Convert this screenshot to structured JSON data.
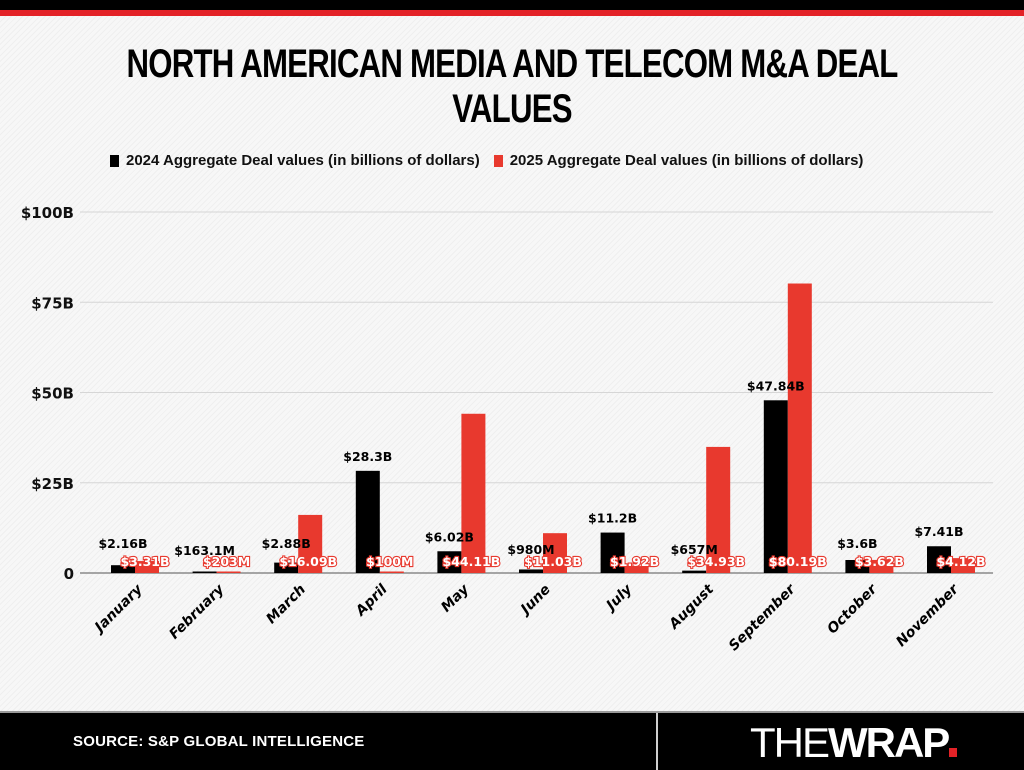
{
  "header": {
    "title": "NORTH AMERICAN MEDIA AND TELECOM M&A DEAL VALUES"
  },
  "footer": {
    "source": "SOURCE: S&P GLOBAL INTELLIGENCE",
    "logo_the": "THE",
    "logo_wrap": "WRAP"
  },
  "colors": {
    "series_2024": "#000000",
    "series_2025": "#e8392e",
    "accent_red": "#e32227"
  },
  "chart_data": {
    "type": "bar",
    "title": "NORTH AMERICAN MEDIA AND TELECOM M&A DEAL VALUES",
    "xlabel": "",
    "ylabel": "",
    "ylim": [
      0,
      100
    ],
    "y_ticks": [
      {
        "value": 0,
        "label": "0"
      },
      {
        "value": 25,
        "label": "$25B"
      },
      {
        "value": 50,
        "label": "$50B"
      },
      {
        "value": 75,
        "label": "$75B"
      },
      {
        "value": 100,
        "label": "$100B"
      }
    ],
    "grid": true,
    "legend_position": "top",
    "categories": [
      "January",
      "February",
      "March",
      "April",
      "May",
      "June",
      "July",
      "August",
      "September",
      "October",
      "November"
    ],
    "series": [
      {
        "name": "2024 Aggregate Deal values (in billions of dollars)",
        "color": "#000000",
        "values": [
          2.16,
          0.1631,
          2.88,
          28.3,
          6.02,
          0.98,
          11.2,
          0.657,
          47.84,
          3.6,
          7.41
        ],
        "labels": [
          "$2.16B",
          "$163.1M",
          "$2.88B",
          "$28.3B",
          "$6.02B",
          "$980M",
          "$11.2B",
          "$657M",
          "$47.84B",
          "$3.6B",
          "$7.41B"
        ]
      },
      {
        "name": "2025 Aggregate Deal values (in billions of dollars)",
        "color": "#e8392e",
        "values": [
          3.31,
          0.203,
          16.09,
          0.1,
          44.11,
          11.03,
          1.92,
          34.93,
          80.19,
          3.62,
          4.12
        ],
        "labels": [
          "$3.31B",
          "$203M",
          "$16.09B",
          "$100M",
          "$44.11B",
          "$11.03B",
          "$1.92B",
          "$34.93B",
          "$80.19B",
          "$3.62B",
          "$4.12B"
        ]
      }
    ]
  }
}
